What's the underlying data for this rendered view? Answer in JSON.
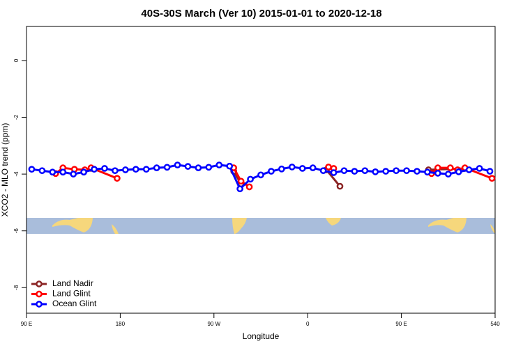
{
  "chart_data": {
    "type": "line",
    "title": "40S-30S March (Ver 10)   2015-01-01 to 2020-12-18",
    "x_label": "Longitude",
    "y_label": "XCO2 - MLO trend (ppm)",
    "xlim": [
      90,
      540
    ],
    "ylim": [
      -8.9,
      1.2
    ],
    "xticks": [
      {
        "value": 90,
        "label": "90 E"
      },
      180,
      {
        "value": 270,
        "label": "90 W"
      },
      {
        "value": 360,
        "label": "0"
      },
      {
        "value": 450,
        "label": "90 E"
      },
      540
    ],
    "yticks": [
      0,
      -2,
      -4,
      -6,
      -8
    ],
    "legend": "bottom-left",
    "series": [
      {
        "name": "Land Nadir",
        "color": "#8b2525",
        "x": [
          152,
          null,
          289,
          296,
          null,
          378,
          391,
          null,
          476,
          511
        ],
        "values": [
          -3.8,
          null,
          -3.9,
          -4.35,
          null,
          -3.85,
          -4.43,
          null,
          -3.85,
          -3.8
        ]
      },
      {
        "name": "Land Glint",
        "color": "#ff0000",
        "x": [
          118,
          125,
          136,
          146,
          152,
          177,
          null,
          289,
          296,
          304,
          null,
          380,
          385,
          null,
          479,
          485,
          497,
          504,
          511,
          537
        ],
        "values": [
          -3.98,
          -3.78,
          -3.83,
          -3.85,
          -3.78,
          -4.15,
          null,
          -3.78,
          -4.25,
          -4.45,
          null,
          -3.75,
          -3.8,
          null,
          -3.98,
          -3.78,
          -3.78,
          -3.85,
          -3.78,
          -4.15
        ]
      },
      {
        "name": "Ocean Glint",
        "color": "#0000ff",
        "x": [
          95,
          105,
          115,
          125,
          135,
          145,
          155,
          165,
          175,
          185,
          195,
          205,
          215,
          225,
          235,
          245,
          255,
          265,
          275,
          285,
          295,
          305,
          315,
          325,
          335,
          345,
          355,
          365,
          375,
          385,
          395,
          405,
          415,
          425,
          435,
          445,
          455,
          465,
          475,
          485,
          495,
          505,
          515,
          525,
          535
        ],
        "values": [
          -3.83,
          -3.88,
          -3.93,
          -3.93,
          -4.0,
          -3.93,
          -3.83,
          -3.8,
          -3.88,
          -3.85,
          -3.83,
          -3.83,
          -3.78,
          -3.76,
          -3.68,
          -3.73,
          -3.78,
          -3.76,
          -3.68,
          -3.72,
          -4.52,
          -4.18,
          -4.03,
          -3.9,
          -3.82,
          -3.75,
          -3.8,
          -3.78,
          -3.88,
          -3.95,
          -3.88,
          -3.9,
          -3.88,
          -3.92,
          -3.9,
          -3.88,
          -3.88,
          -3.9,
          -3.93,
          -3.97,
          -4.0,
          -3.92,
          -3.85,
          -3.8,
          -3.9
        ]
      }
    ]
  }
}
